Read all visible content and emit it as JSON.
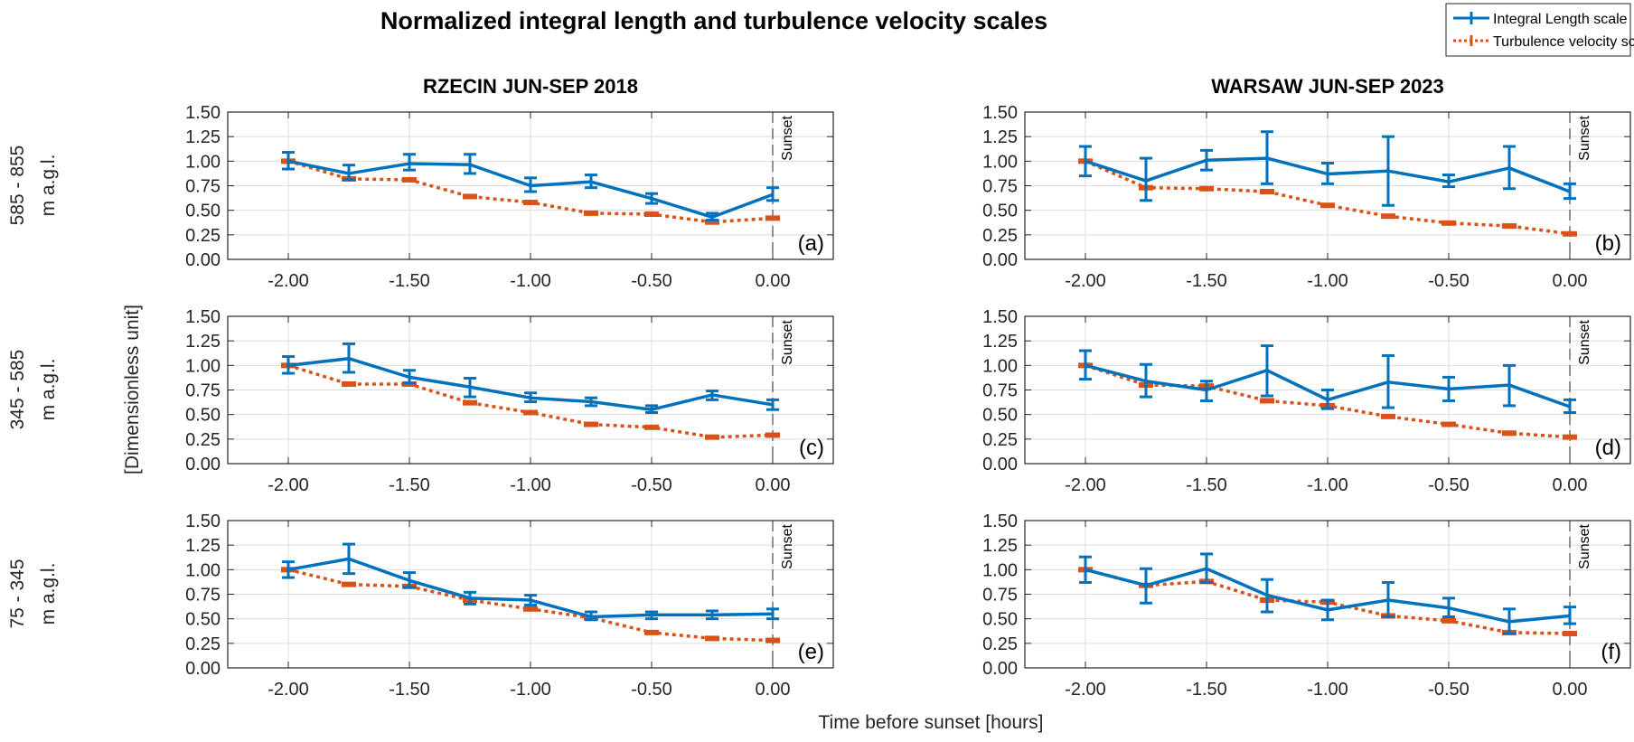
{
  "title": "Normalized integral length and turbulence velocity scales",
  "legend": {
    "items": [
      {
        "label": "Integral Length scale",
        "color": "#0072BD",
        "style": "solid"
      },
      {
        "label": "Turbulence velocity scale",
        "color": "#D95319",
        "style": "dotted"
      }
    ]
  },
  "column_titles": [
    "RZECIN JUN-SEP 2018",
    "WARSAW JUN-SEP 2023"
  ],
  "row_labels": [
    {
      "line1": "585 - 855",
      "line2": "m a.g.l."
    },
    {
      "line1": "345 - 585",
      "line2": "m a.g.l."
    },
    {
      "line1": "75 - 345",
      "line2": "m a.g.l."
    }
  ],
  "ylabel": "[Dimensionless unit]",
  "xlabel": "Time before sunset [hours]",
  "sunset_label": "Sunset",
  "chart_data": [
    {
      "type": "line",
      "panel": "(a)",
      "x": [
        -2,
        -1.75,
        -1.5,
        -1.25,
        -1,
        -0.75,
        -0.5,
        -0.25,
        0
      ],
      "xlim": [
        -2.25,
        0.25
      ],
      "ylim": [
        0,
        1.5
      ],
      "xticks": [
        "-2.00",
        "-1.50",
        "-1.00",
        "-0.50",
        "0.00"
      ],
      "yticks": [
        "0.00",
        "0.25",
        "0.50",
        "0.75",
        "1.00",
        "1.25",
        "1.50"
      ],
      "grid": true,
      "series": [
        {
          "name": "Integral Length scale",
          "values": [
            1.0,
            0.875,
            0.975,
            0.965,
            0.75,
            0.79,
            0.62,
            0.43,
            0.66
          ],
          "err_low": [
            0.92,
            0.81,
            0.91,
            0.875,
            0.69,
            0.73,
            0.57,
            0.4,
            0.6
          ],
          "err_high": [
            1.09,
            0.96,
            1.07,
            1.07,
            0.83,
            0.86,
            0.67,
            0.47,
            0.73
          ]
        },
        {
          "name": "Turbulence velocity scale",
          "values": [
            1.0,
            0.82,
            0.81,
            0.64,
            0.58,
            0.47,
            0.46,
            0.38,
            0.42
          ]
        }
      ]
    },
    {
      "type": "line",
      "panel": "(b)",
      "x": [
        -2,
        -1.75,
        -1.5,
        -1.25,
        -1,
        -0.75,
        -0.5,
        -0.25,
        0
      ],
      "xlim": [
        -2.25,
        0.25
      ],
      "ylim": [
        0,
        1.5
      ],
      "xticks": [
        "-2.00",
        "-1.50",
        "-1.00",
        "-0.50",
        "0.00"
      ],
      "yticks": [
        "0.00",
        "0.25",
        "0.50",
        "0.75",
        "1.00",
        "1.25",
        "1.50"
      ],
      "grid": true,
      "series": [
        {
          "name": "Integral Length scale",
          "values": [
            1.0,
            0.8,
            1.01,
            1.03,
            0.87,
            0.9,
            0.79,
            0.93,
            0.69
          ],
          "err_low": [
            0.85,
            0.6,
            0.91,
            0.77,
            0.77,
            0.55,
            0.74,
            0.72,
            0.62
          ],
          "err_high": [
            1.15,
            1.03,
            1.11,
            1.3,
            0.98,
            1.25,
            0.86,
            1.15,
            0.77
          ]
        },
        {
          "name": "Turbulence velocity scale",
          "values": [
            1.0,
            0.73,
            0.72,
            0.69,
            0.55,
            0.44,
            0.37,
            0.34,
            0.26
          ]
        }
      ]
    },
    {
      "type": "line",
      "panel": "(c)",
      "x": [
        -2,
        -1.75,
        -1.5,
        -1.25,
        -1,
        -0.75,
        -0.5,
        -0.25,
        0
      ],
      "xlim": [
        -2.25,
        0.25
      ],
      "ylim": [
        0,
        1.5
      ],
      "xticks": [
        "-2.00",
        "-1.50",
        "-1.00",
        "-0.50",
        "0.00"
      ],
      "yticks": [
        "0.00",
        "0.25",
        "0.50",
        "0.75",
        "1.00",
        "1.25",
        "1.50"
      ],
      "grid": true,
      "series": [
        {
          "name": "Integral Length scale",
          "values": [
            1.0,
            1.07,
            0.88,
            0.78,
            0.67,
            0.63,
            0.55,
            0.7,
            0.6
          ],
          "err_low": [
            0.92,
            0.93,
            0.82,
            0.68,
            0.63,
            0.59,
            0.52,
            0.65,
            0.55
          ],
          "err_high": [
            1.09,
            1.22,
            0.95,
            0.87,
            0.72,
            0.67,
            0.59,
            0.74,
            0.65
          ]
        },
        {
          "name": "Turbulence velocity scale",
          "values": [
            1.0,
            0.81,
            0.81,
            0.62,
            0.52,
            0.4,
            0.37,
            0.27,
            0.29
          ]
        }
      ]
    },
    {
      "type": "line",
      "panel": "(d)",
      "x": [
        -2,
        -1.75,
        -1.5,
        -1.25,
        -1,
        -0.75,
        -0.5,
        -0.25,
        0
      ],
      "xlim": [
        -2.25,
        0.25
      ],
      "ylim": [
        0,
        1.5
      ],
      "xticks": [
        "-2.00",
        "-1.50",
        "-1.00",
        "-0.50",
        "0.00"
      ],
      "yticks": [
        "0.00",
        "0.25",
        "0.50",
        "0.75",
        "1.00",
        "1.25",
        "1.50"
      ],
      "grid": true,
      "series": [
        {
          "name": "Integral Length scale",
          "values": [
            1.0,
            0.84,
            0.75,
            0.95,
            0.65,
            0.83,
            0.76,
            0.8,
            0.58
          ],
          "err_low": [
            0.86,
            0.68,
            0.64,
            0.69,
            0.56,
            0.57,
            0.64,
            0.59,
            0.52
          ],
          "err_high": [
            1.15,
            1.01,
            0.84,
            1.2,
            0.75,
            1.1,
            0.88,
            1.0,
            0.65
          ]
        },
        {
          "name": "Turbulence velocity scale",
          "values": [
            1.0,
            0.8,
            0.79,
            0.64,
            0.59,
            0.48,
            0.4,
            0.31,
            0.27
          ]
        }
      ]
    },
    {
      "type": "line",
      "panel": "(e)",
      "x": [
        -2,
        -1.75,
        -1.5,
        -1.25,
        -1,
        -0.75,
        -0.5,
        -0.25,
        0
      ],
      "xlim": [
        -2.25,
        0.25
      ],
      "ylim": [
        0,
        1.5
      ],
      "xticks": [
        "-2.00",
        "-1.50",
        "-1.00",
        "-0.50",
        "0.00"
      ],
      "yticks": [
        "0.00",
        "0.25",
        "0.50",
        "0.75",
        "1.00",
        "1.25",
        "1.50"
      ],
      "grid": true,
      "series": [
        {
          "name": "Integral Length scale",
          "values": [
            1.0,
            1.11,
            0.89,
            0.71,
            0.69,
            0.52,
            0.54,
            0.54,
            0.55
          ],
          "err_low": [
            0.92,
            0.96,
            0.82,
            0.65,
            0.64,
            0.49,
            0.5,
            0.5,
            0.5
          ],
          "err_high": [
            1.08,
            1.26,
            0.97,
            0.77,
            0.74,
            0.57,
            0.57,
            0.58,
            0.6
          ]
        },
        {
          "name": "Turbulence velocity scale",
          "values": [
            1.0,
            0.85,
            0.83,
            0.69,
            0.6,
            0.51,
            0.36,
            0.3,
            0.28
          ]
        }
      ]
    },
    {
      "type": "line",
      "panel": "(f)",
      "x": [
        -2,
        -1.75,
        -1.5,
        -1.25,
        -1,
        -0.75,
        -0.5,
        -0.25,
        0
      ],
      "xlim": [
        -2.25,
        0.25
      ],
      "ylim": [
        0,
        1.5
      ],
      "xticks": [
        "-2.00",
        "-1.50",
        "-1.00",
        "-0.50",
        "0.00"
      ],
      "yticks": [
        "0.00",
        "0.25",
        "0.50",
        "0.75",
        "1.00",
        "1.25",
        "1.50"
      ],
      "grid": true,
      "series": [
        {
          "name": "Integral Length scale",
          "values": [
            1.0,
            0.84,
            1.01,
            0.74,
            0.59,
            0.69,
            0.61,
            0.47,
            0.53
          ],
          "err_low": [
            0.87,
            0.66,
            0.87,
            0.57,
            0.49,
            0.52,
            0.52,
            0.35,
            0.45
          ],
          "err_high": [
            1.13,
            1.01,
            1.16,
            0.9,
            0.69,
            0.87,
            0.71,
            0.6,
            0.62
          ]
        },
        {
          "name": "Turbulence velocity scale",
          "values": [
            1.0,
            0.84,
            0.88,
            0.69,
            0.67,
            0.53,
            0.48,
            0.36,
            0.35
          ]
        }
      ]
    }
  ]
}
